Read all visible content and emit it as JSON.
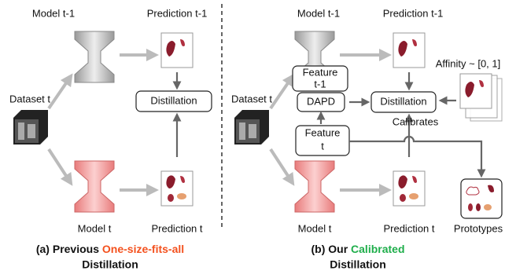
{
  "left": {
    "model_prev": "Model t-1",
    "prediction_prev": "Prediction t-1",
    "dataset": "Dataset t",
    "distillation": "Distillation",
    "model_curr": "Model t",
    "prediction_curr": "Prediction t",
    "caption": {
      "prefix": "(a) Previous ",
      "highlight": "One-size-fits-all",
      "suffix": "Distillation"
    }
  },
  "right": {
    "model_prev": "Model t-1",
    "prediction_prev": "Prediction t-1",
    "dataset": "Dataset t",
    "feature_prev": [
      "Feature",
      "t-1"
    ],
    "dapd": "DAPD",
    "distillation": "Distillation",
    "affinity": "Affinity ~ [0, 1]",
    "calibrates": "Calibrates",
    "feature_curr": [
      "Feature",
      "t"
    ],
    "model_curr": "Model t",
    "prediction_curr": "Prediction t",
    "prototypes": "Prototypes",
    "caption": {
      "prefix": "(b) Our ",
      "highlight": "Calibrated",
      "suffix": "Distillation"
    }
  }
}
